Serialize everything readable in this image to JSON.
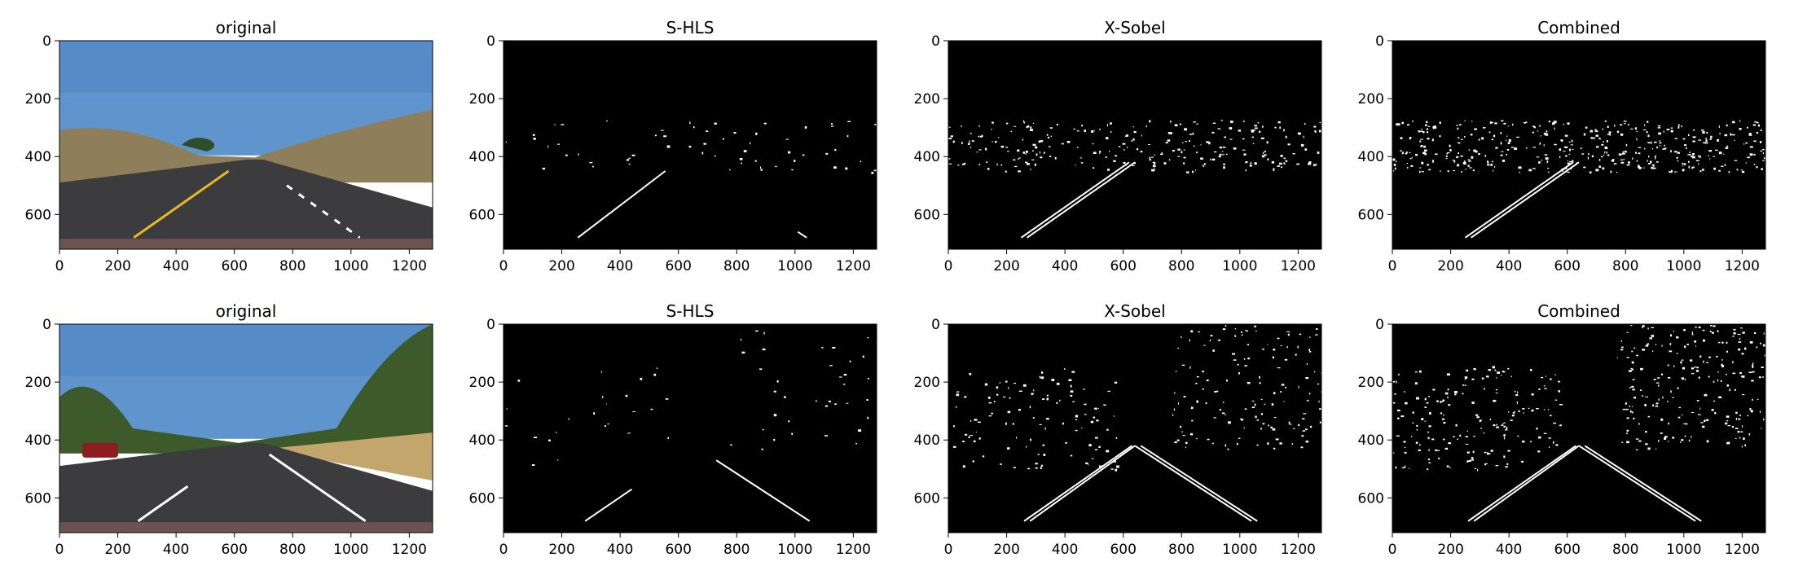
{
  "chart_data": [
    {
      "type": "image",
      "title": "original",
      "image": "road-photo",
      "xticks": [
        "0",
        "200",
        "400",
        "600",
        "800",
        "1000",
        "1200"
      ],
      "yticks": [
        "0",
        "200",
        "400",
        "600"
      ],
      "xlim": [
        0,
        1280
      ],
      "ylim": [
        720,
        0
      ],
      "lanes": [
        {
          "from": [
            255,
            680
          ],
          "to": [
            580,
            450
          ],
          "color": "yellow"
        },
        {
          "from": [
            780,
            500
          ],
          "to": [
            1030,
            680
          ],
          "color": "white-dashed"
        }
      ]
    },
    {
      "type": "image",
      "title": "S-HLS",
      "image": "binary-mask",
      "xticks": [
        "0",
        "200",
        "400",
        "600",
        "800",
        "1000",
        "1200"
      ],
      "yticks": [
        "0",
        "200",
        "400",
        "600"
      ],
      "xlim": [
        0,
        1280
      ],
      "ylim": [
        720,
        0
      ],
      "lanes": [
        {
          "from": [
            255,
            680
          ],
          "to": [
            555,
            450
          ]
        },
        {
          "from": [
            1010,
            660
          ],
          "to": [
            1040,
            680
          ]
        }
      ]
    },
    {
      "type": "image",
      "title": "X-Sobel",
      "image": "binary-mask",
      "xticks": [
        "0",
        "200",
        "400",
        "600",
        "800",
        "1000",
        "1200"
      ],
      "yticks": [
        "0",
        "200",
        "400",
        "600"
      ],
      "xlim": [
        0,
        1280
      ],
      "ylim": [
        720,
        0
      ],
      "lanes": [
        {
          "from": [
            250,
            680
          ],
          "to": [
            620,
            420
          ]
        },
        {
          "from": [
            270,
            680
          ],
          "to": [
            640,
            420
          ]
        }
      ]
    },
    {
      "type": "image",
      "title": "Combined",
      "image": "binary-mask",
      "xticks": [
        "0",
        "200",
        "400",
        "600",
        "800",
        "1000",
        "1200"
      ],
      "yticks": [
        "0",
        "200",
        "400",
        "600"
      ],
      "xlim": [
        0,
        1280
      ],
      "ylim": [
        720,
        0
      ],
      "lanes": [
        {
          "from": [
            250,
            680
          ],
          "to": [
            620,
            420
          ]
        },
        {
          "from": [
            270,
            680
          ],
          "to": [
            640,
            420
          ]
        }
      ]
    },
    {
      "type": "image",
      "title": "original",
      "image": "road-photo",
      "xticks": [
        "0",
        "200",
        "400",
        "600",
        "800",
        "1000",
        "1200"
      ],
      "yticks": [
        "0",
        "200",
        "400",
        "600"
      ],
      "xlim": [
        0,
        1280
      ],
      "ylim": [
        720,
        0
      ],
      "lanes": [
        {
          "from": [
            270,
            680
          ],
          "to": [
            440,
            560
          ],
          "color": "white"
        },
        {
          "from": [
            720,
            450
          ],
          "to": [
            1050,
            680
          ],
          "color": "white"
        }
      ]
    },
    {
      "type": "image",
      "title": "S-HLS",
      "image": "binary-mask",
      "xticks": [
        "0",
        "200",
        "400",
        "600",
        "800",
        "1000",
        "1200"
      ],
      "yticks": [
        "0",
        "200",
        "400",
        "600"
      ],
      "xlim": [
        0,
        1280
      ],
      "ylim": [
        720,
        0
      ],
      "lanes": [
        {
          "from": [
            280,
            680
          ],
          "to": [
            440,
            570
          ]
        },
        {
          "from": [
            730,
            470
          ],
          "to": [
            1050,
            680
          ]
        }
      ]
    },
    {
      "type": "image",
      "title": "X-Sobel",
      "image": "binary-mask",
      "xticks": [
        "0",
        "200",
        "400",
        "600",
        "800",
        "1000",
        "1200"
      ],
      "yticks": [
        "0",
        "200",
        "400",
        "600"
      ],
      "xlim": [
        0,
        1280
      ],
      "ylim": [
        720,
        0
      ],
      "lanes": [
        {
          "from": [
            260,
            680
          ],
          "to": [
            630,
            420
          ]
        },
        {
          "from": [
            280,
            680
          ],
          "to": [
            640,
            420
          ]
        },
        {
          "from": [
            640,
            420
          ],
          "to": [
            1040,
            680
          ]
        },
        {
          "from": [
            660,
            420
          ],
          "to": [
            1060,
            680
          ]
        }
      ]
    },
    {
      "type": "image",
      "title": "Combined",
      "image": "binary-mask",
      "xticks": [
        "0",
        "200",
        "400",
        "600",
        "800",
        "1000",
        "1200"
      ],
      "yticks": [
        "0",
        "200",
        "400",
        "600"
      ],
      "xlim": [
        0,
        1280
      ],
      "ylim": [
        720,
        0
      ],
      "lanes": [
        {
          "from": [
            260,
            680
          ],
          "to": [
            630,
            420
          ]
        },
        {
          "from": [
            280,
            680
          ],
          "to": [
            640,
            420
          ]
        },
        {
          "from": [
            640,
            420
          ],
          "to": [
            1040,
            680
          ]
        },
        {
          "from": [
            660,
            420
          ],
          "to": [
            1060,
            680
          ]
        }
      ]
    }
  ]
}
